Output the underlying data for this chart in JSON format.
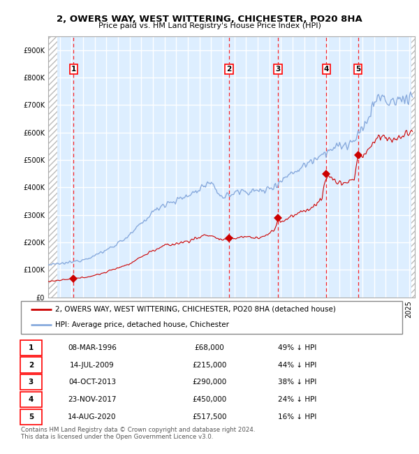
{
  "title1": "2, OWERS WAY, WEST WITTERING, CHICHESTER, PO20 8HA",
  "title2": "Price paid vs. HM Land Registry's House Price Index (HPI)",
  "xlim_start": 1994.0,
  "xlim_end": 2025.5,
  "ylim_min": 0,
  "ylim_max": 950000,
  "plot_bg_color": "#ddeeff",
  "grid_color": "#FFFFFF",
  "sale_line_color": "#cc0000",
  "hpi_line_color": "#88aadd",
  "sale_marker_color": "#cc0000",
  "hatch_left_end": 1994.75,
  "hatch_right_start": 2025.17,
  "transactions": [
    {
      "num": 1,
      "date_x": 1996.18,
      "price": 68000
    },
    {
      "num": 2,
      "date_x": 2009.54,
      "price": 215000
    },
    {
      "num": 3,
      "date_x": 2013.75,
      "price": 290000
    },
    {
      "num": 4,
      "date_x": 2017.9,
      "price": 450000
    },
    {
      "num": 5,
      "date_x": 2020.62,
      "price": 517500
    }
  ],
  "legend_sale_label": "2, OWERS WAY, WEST WITTERING, CHICHESTER, PO20 8HA (detached house)",
  "legend_hpi_label": "HPI: Average price, detached house, Chichester",
  "footer": "Contains HM Land Registry data © Crown copyright and database right 2024.\nThis data is licensed under the Open Government Licence v3.0.",
  "table_rows": [
    [
      1,
      "08-MAR-1996",
      "£68,000",
      "49% ↓ HPI"
    ],
    [
      2,
      "14-JUL-2009",
      "£215,000",
      "44% ↓ HPI"
    ],
    [
      3,
      "04-OCT-2013",
      "£290,000",
      "38% ↓ HPI"
    ],
    [
      4,
      "23-NOV-2017",
      "£450,000",
      "24% ↓ HPI"
    ],
    [
      5,
      "14-AUG-2020",
      "£517,500",
      "16% ↓ HPI"
    ]
  ]
}
